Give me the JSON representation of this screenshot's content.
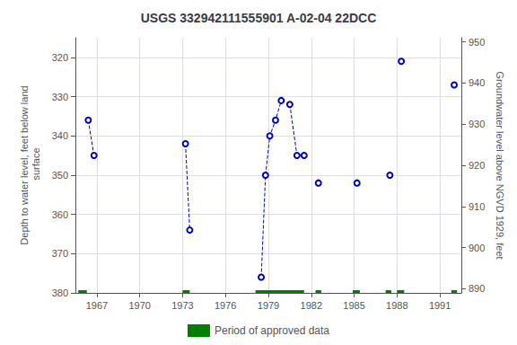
{
  "chart_data": {
    "type": "line",
    "title": "USGS 332942111555901 A-02-04 22DCC",
    "y_label": "Depth to water level, feet below land\n surface",
    "y2_label": "Groundwater level above NGVD 1929, feet",
    "xlim": [
      1965.5,
      1992.5
    ],
    "xticks": [
      1967,
      1970,
      1973,
      1976,
      1979,
      1982,
      1985,
      1988,
      1991
    ],
    "ylim": [
      380,
      315
    ],
    "yticks": [
      320,
      330,
      340,
      350,
      360,
      370,
      380
    ],
    "y2lim": [
      889,
      951
    ],
    "y2ticks": [
      950,
      940,
      930,
      920,
      910,
      900,
      890
    ],
    "grid": true,
    "legend": "bottom",
    "series": [
      {
        "x": [
          1966.4,
          1966.8
        ],
        "values": [
          336,
          345
        ],
        "color": "#0000cc",
        "line_style": "dashed",
        "marker": "open_circle"
      },
      {
        "x": [
          1973.2,
          1973.5
        ],
        "values": [
          342,
          364
        ],
        "color": "#0000cc",
        "line_style": "dashed",
        "marker": "open_circle"
      },
      {
        "x": [
          1978.5,
          1978.8,
          1979.1,
          1979.5,
          1979.9
        ],
        "values": [
          376,
          350,
          340,
          336,
          331
        ],
        "color": "#0000cc",
        "line_style": "dashed",
        "marker": "open_circle"
      },
      {
        "x": [
          1980.5,
          1981.0,
          1981.5
        ],
        "values": [
          332,
          345,
          345
        ],
        "color": "#0000cc",
        "line_style": "dashed",
        "marker": "open_circle"
      },
      {
        "x": [
          1982.5
        ],
        "values": [
          352
        ],
        "color": "#0000cc",
        "line_style": "dashed",
        "marker": "open_circle"
      },
      {
        "x": [
          1985.2
        ],
        "values": [
          352
        ],
        "color": "#0000cc",
        "line_style": "dashed",
        "marker": "open_circle"
      },
      {
        "x": [
          1987.5
        ],
        "values": [
          350
        ],
        "color": "#0000cc",
        "line_style": "dashed",
        "marker": "open_circle"
      },
      {
        "x": [
          1988.3
        ],
        "values": [
          321
        ],
        "color": "#0000cc",
        "line_style": "dashed",
        "marker": "open_circle"
      },
      {
        "x": [
          1992.0
        ],
        "values": [
          327
        ],
        "color": "#0000cc",
        "line_style": "dashed",
        "marker": "open_circle"
      },
      {
        "name": "Period of approved data",
        "type": "segments",
        "color": "#008000",
        "x_start": [
          1965.7,
          1973.0,
          1978.1,
          1982.3,
          1984.9,
          1987.2,
          1988.0,
          1991.8
        ],
        "x_end": [
          1966.3,
          1973.5,
          1981.5,
          1982.7,
          1985.4,
          1987.6,
          1988.5,
          1992.2
        ],
        "values": [
          380,
          380,
          380,
          380,
          380,
          380,
          380,
          380
        ]
      }
    ]
  }
}
